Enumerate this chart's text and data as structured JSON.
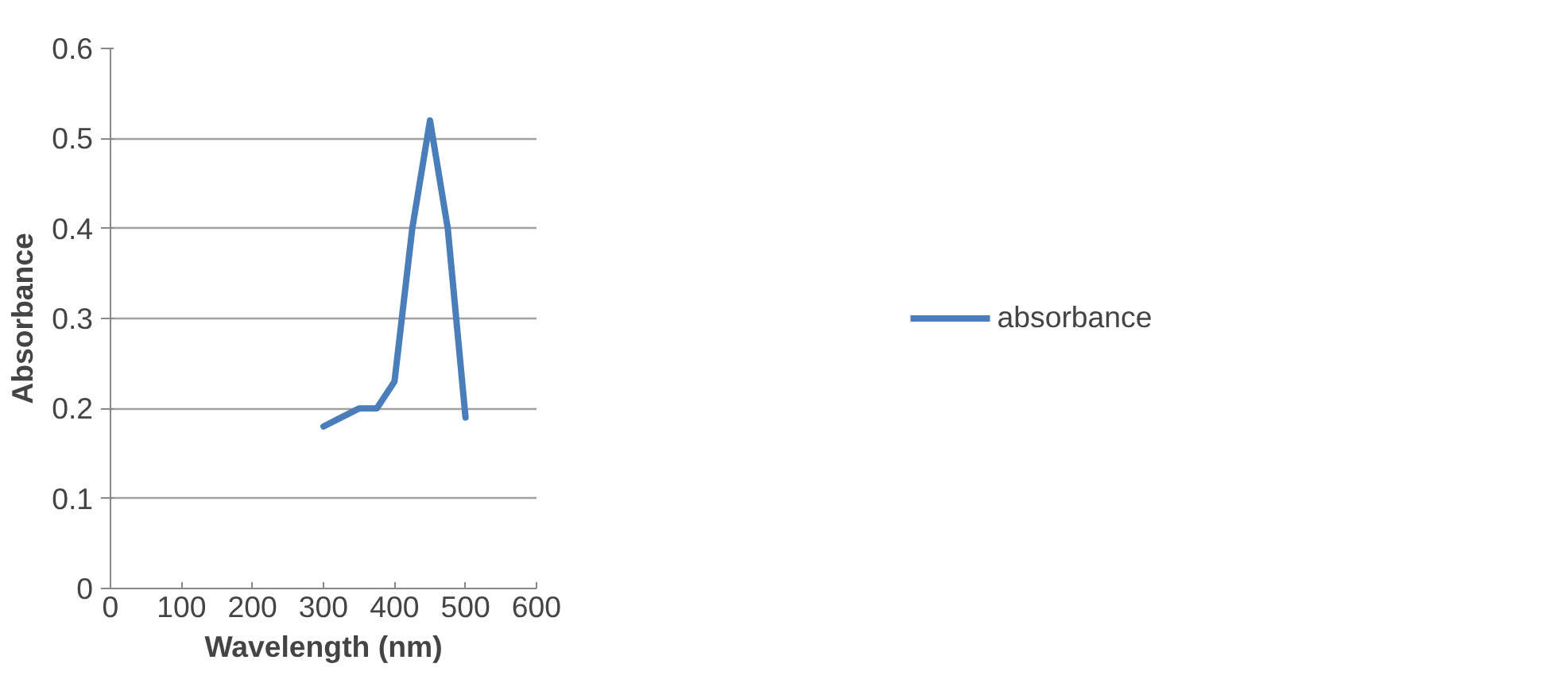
{
  "chart_data": {
    "type": "line",
    "xlabel": "Wavelength (nm)",
    "ylabel": "Absorbance",
    "x": [
      300,
      325,
      350,
      375,
      400,
      425,
      450,
      475,
      500
    ],
    "series": [
      {
        "name": "absorbance",
        "color": "#4a7ebb",
        "values": [
          0.18,
          0.19,
          0.2,
          0.2,
          0.23,
          0.4,
          0.52,
          0.4,
          0.19
        ]
      }
    ],
    "xlim": [
      0,
      600
    ],
    "xticks": [
      0,
      100,
      200,
      300,
      400,
      500,
      600
    ],
    "ylim": [
      0,
      0.6
    ],
    "yticks": [
      0,
      0.1,
      0.2,
      0.3,
      0.4,
      0.5,
      0.6
    ],
    "grid": "y",
    "legend": "right",
    "marker": "none",
    "line_style": "solid"
  }
}
